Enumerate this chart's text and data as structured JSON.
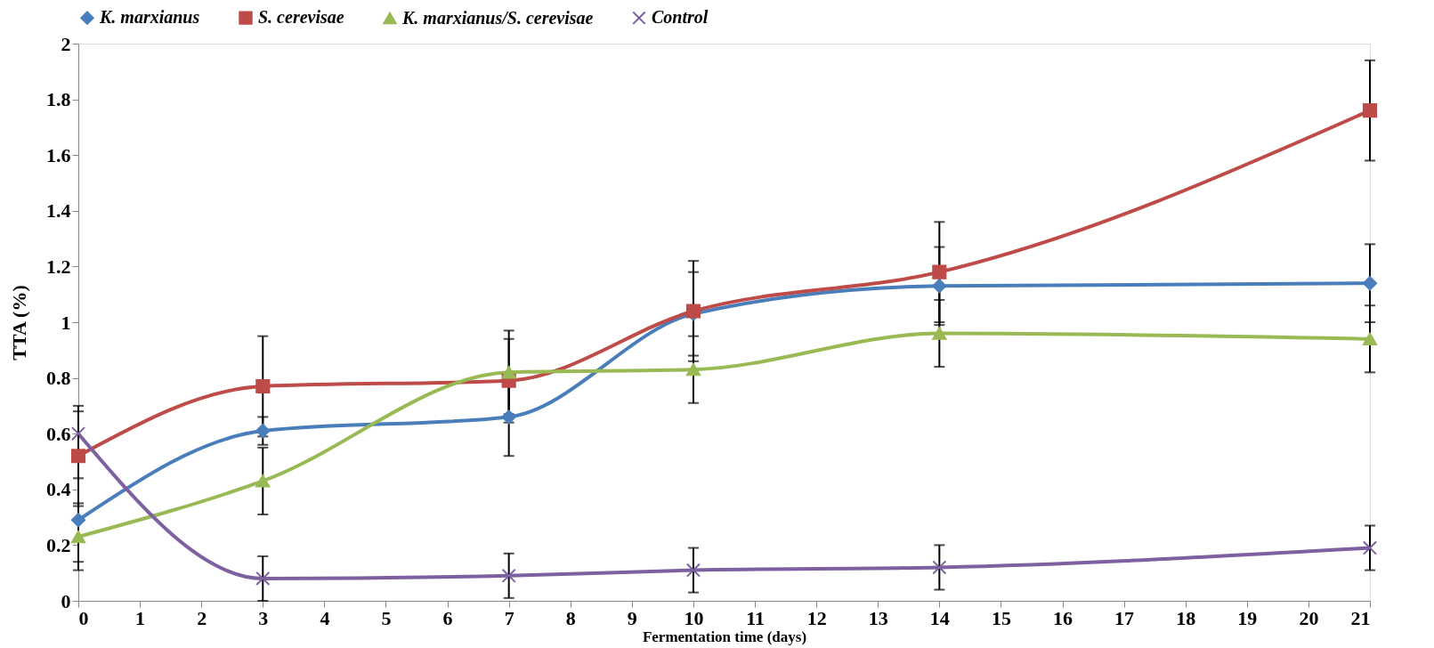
{
  "chart_data": {
    "type": "line",
    "xlabel": "Fermentation time (days)",
    "ylabel": "TTA (%)",
    "x": [
      0,
      3,
      7,
      10,
      14,
      21
    ],
    "series": [
      {
        "name": "K. marxianus",
        "color": "#4a7ebb",
        "marker": "diamond",
        "values": [
          0.29,
          0.61,
          0.66,
          1.03,
          1.13,
          1.14
        ],
        "errors": [
          0.15,
          0.05,
          0.14,
          0.15,
          0.14,
          0.14
        ]
      },
      {
        "name": "S. cerevisae",
        "color": "#be4b48",
        "marker": "square",
        "values": [
          0.52,
          0.77,
          0.79,
          1.04,
          1.18,
          1.76
        ],
        "errors": [
          0.18,
          0.18,
          0.15,
          0.18,
          0.18,
          0.18
        ]
      },
      {
        "name": "K. marxianus/S. cerevisae",
        "color": "#98b954",
        "marker": "triangle",
        "values": [
          0.23,
          0.43,
          0.82,
          0.83,
          0.96,
          0.94
        ],
        "errors": [
          0.12,
          0.12,
          0.15,
          0.12,
          0.12,
          0.12
        ]
      },
      {
        "name": "Control",
        "color": "#7d60a0",
        "marker": "cross",
        "values": [
          0.6,
          0.08,
          0.09,
          0.11,
          0.12,
          0.19
        ],
        "errors": [
          0.08,
          0.08,
          0.08,
          0.08,
          0.08,
          0.08
        ]
      }
    ],
    "xlim": [
      0,
      21
    ],
    "xticks": [
      0,
      1,
      2,
      3,
      4,
      5,
      6,
      7,
      8,
      9,
      10,
      11,
      12,
      13,
      14,
      15,
      16,
      17,
      18,
      19,
      20,
      21
    ],
    "ylim": [
      0,
      2
    ],
    "yticks": [
      0,
      0.2,
      0.4,
      0.6,
      0.8,
      1,
      1.2,
      1.4,
      1.6,
      1.8,
      2
    ],
    "grid": false,
    "legend": "top",
    "line_style": "solid"
  }
}
